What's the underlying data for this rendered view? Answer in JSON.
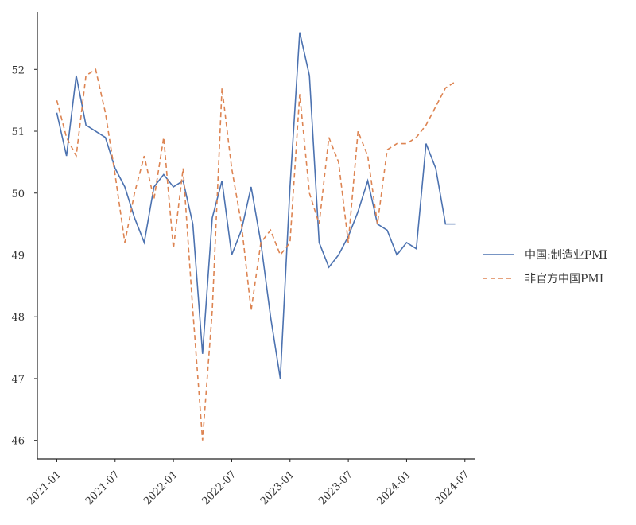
{
  "chart_data": {
    "type": "line",
    "x": [
      "2021-01",
      "2021-02",
      "2021-03",
      "2021-04",
      "2021-05",
      "2021-06",
      "2021-07",
      "2021-08",
      "2021-09",
      "2021-10",
      "2021-11",
      "2021-12",
      "2022-01",
      "2022-02",
      "2022-03",
      "2022-04",
      "2022-05",
      "2022-06",
      "2022-07",
      "2022-08",
      "2022-09",
      "2022-10",
      "2022-11",
      "2022-12",
      "2023-01",
      "2023-02",
      "2023-03",
      "2023-04",
      "2023-05",
      "2023-06",
      "2023-07",
      "2023-08",
      "2023-09",
      "2023-10",
      "2023-11",
      "2023-12",
      "2024-01",
      "2024-02",
      "2024-03",
      "2024-04",
      "2024-05",
      "2024-06"
    ],
    "series": [
      {
        "name": "中国:制造业PMI",
        "color": "#4c72b0",
        "dash": false,
        "values": [
          51.3,
          50.6,
          51.9,
          51.1,
          51.0,
          50.9,
          50.4,
          50.1,
          49.6,
          49.2,
          50.1,
          50.3,
          50.1,
          50.2,
          49.5,
          47.4,
          49.6,
          50.2,
          49.0,
          49.4,
          50.1,
          49.2,
          48.0,
          47.0,
          50.1,
          52.6,
          51.9,
          49.2,
          48.8,
          49.0,
          49.3,
          49.7,
          50.2,
          49.5,
          49.4,
          49.0,
          49.2,
          49.1,
          50.8,
          50.4,
          49.5,
          49.5
        ]
      },
      {
        "name": "非官方中国PMI",
        "color": "#dd8452",
        "dash": true,
        "values": [
          51.5,
          50.9,
          50.6,
          51.9,
          52.0,
          51.3,
          50.3,
          49.2,
          50.0,
          50.6,
          49.9,
          50.9,
          49.1,
          50.4,
          48.1,
          46.0,
          48.1,
          51.7,
          50.4,
          49.5,
          48.1,
          49.2,
          49.4,
          49.0,
          49.2,
          51.6,
          50.0,
          49.5,
          50.9,
          50.5,
          49.2,
          51.0,
          50.6,
          49.5,
          50.7,
          50.8,
          50.8,
          50.9,
          51.1,
          51.4,
          51.7,
          51.8
        ]
      }
    ],
    "xlim": [
      "2020-11",
      "2024-08"
    ],
    "xticks": [
      "2021-01",
      "2021-07",
      "2022-01",
      "2022-07",
      "2023-01",
      "2023-07",
      "2024-01",
      "2024-07"
    ],
    "ylim": [
      45.7,
      52.93
    ],
    "yticks": [
      46,
      47,
      48,
      49,
      50,
      51,
      52
    ],
    "legend": "right"
  }
}
